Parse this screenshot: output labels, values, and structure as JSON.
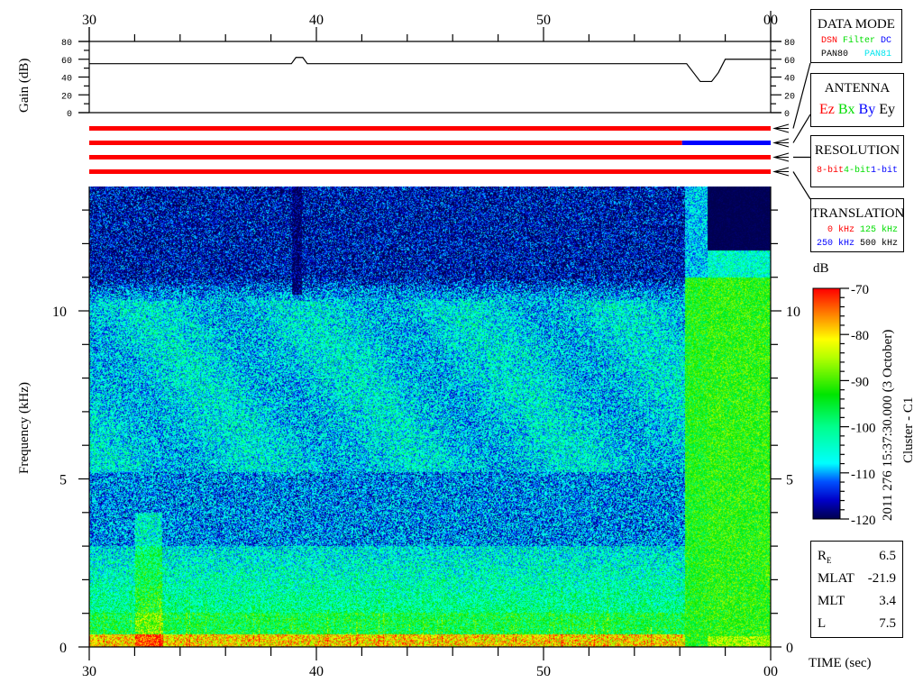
{
  "chart_data": {
    "type": "heatmap",
    "title": "",
    "xlabel": "TIME (sec)",
    "ylabel": "Frequency (kHz)",
    "x_tick_labels": [
      "30",
      "40",
      "50",
      "00"
    ],
    "x_range": [
      30,
      60
    ],
    "y_tick_labels": [
      "0",
      "5",
      "10"
    ],
    "y_range": [
      0,
      13.7
    ],
    "colorbar": {
      "label": "dB",
      "range": [
        -120,
        -70
      ],
      "tick_labels": [
        "-70",
        "-80",
        "-90",
        "-100",
        "-110",
        "-120"
      ],
      "colormap": "jet"
    },
    "gain_panel": {
      "ylabel": "Gain (dB)",
      "tick_labels": [
        "80",
        "60",
        "40",
        "20",
        "0"
      ],
      "ylim": [
        0,
        80
      ],
      "series": [
        {
          "t": [
            30,
            38.9,
            39.1,
            39.4,
            39.6,
            56.3,
            56.6,
            56.9,
            57.4,
            57.7,
            58.0,
            60
          ],
          "gain": [
            55,
            55,
            62,
            62,
            55,
            55,
            45,
            35,
            35,
            45,
            60,
            60
          ]
        }
      ]
    },
    "status_bars": [
      {
        "segments": [
          {
            "from": 30,
            "to": 60,
            "color": "#ff0000"
          }
        ]
      },
      {
        "segments": [
          {
            "from": 30,
            "to": 56.1,
            "color": "#ff0000"
          },
          {
            "from": 56.1,
            "to": 60,
            "color": "#0000ff"
          }
        ]
      },
      {
        "segments": [
          {
            "from": 30,
            "to": 60,
            "color": "#ff0000"
          }
        ]
      },
      {
        "segments": [
          {
            "from": 30,
            "to": 60,
            "color": "#ff0000"
          }
        ]
      }
    ]
  },
  "legends": {
    "data_mode": {
      "title": "DATA MODE",
      "items": [
        {
          "t": "DSN",
          "c": "#ff0000"
        },
        {
          "t": "Filter",
          "c": "#00dd00"
        },
        {
          "t": "DC",
          "c": "#0000ff"
        },
        {
          "t": "PAN80",
          "c": "#000000"
        },
        {
          "t": "PAN81",
          "c": "#00e5ee"
        }
      ]
    },
    "antenna": {
      "title": "ANTENNA",
      "items": [
        {
          "t": "Ez",
          "c": "#ff0000"
        },
        {
          "t": "Bx",
          "c": "#00dd00"
        },
        {
          "t": "By",
          "c": "#0000ff"
        },
        {
          "t": "Ey",
          "c": "#000000"
        }
      ]
    },
    "resolution": {
      "title": "RESOLUTION",
      "items": [
        {
          "t": "8-bit",
          "c": "#ff0000"
        },
        {
          "t": "4-bit",
          "c": "#00dd00"
        },
        {
          "t": "1-bit",
          "c": "#0000ff"
        }
      ]
    },
    "translation": {
      "title": "TRANSLATION",
      "items": [
        {
          "t": "0 kHz",
          "c": "#ff0000"
        },
        {
          "t": "125 kHz",
          "c": "#00dd00"
        },
        {
          "t": "250 kHz",
          "c": "#0000ff"
        },
        {
          "t": "500 kHz",
          "c": "#000000"
        }
      ]
    }
  },
  "timestamp": "2011 276 15:37:30.000 (3 October)",
  "spacecraft": "Cluster - C1",
  "orbit": {
    "re_label": "R",
    "re_sub": "E",
    "re": "6.5",
    "mlat_label": "MLAT",
    "mlat": "-21.9",
    "mlt_label": "MLT",
    "mlt": "3.4",
    "l_label": "L",
    "l": "7.5"
  }
}
